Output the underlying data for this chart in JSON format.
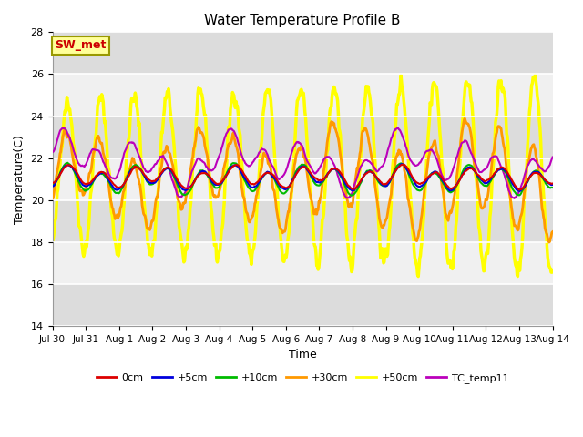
{
  "title": "Water Temperature Profile B",
  "xlabel": "Time",
  "ylabel": "Temperature(C)",
  "ylim": [
    14,
    28
  ],
  "yticks": [
    14,
    16,
    18,
    20,
    22,
    24,
    26,
    28
  ],
  "annotation": "SW_met",
  "annotation_color": "#CC0000",
  "annotation_bg": "#FFFF99",
  "annotation_border": "#999900",
  "series": {
    "0cm": {
      "color": "#DD0000",
      "lw": 1.5
    },
    "+5cm": {
      "color": "#0000DD",
      "lw": 1.5
    },
    "+10cm": {
      "color": "#00BB00",
      "lw": 1.5
    },
    "+30cm": {
      "color": "#FF9900",
      "lw": 2.0
    },
    "+50cm": {
      "color": "#FFFF00",
      "lw": 2.5
    },
    "TC_temp11": {
      "color": "#BB00BB",
      "lw": 1.5
    }
  },
  "tick_labels": [
    "Jul 30",
    "Jul 31",
    "Aug 1",
    "Aug 2",
    "Aug 3",
    "Aug 4",
    "Aug 5",
    "Aug 6",
    "Aug 7",
    "Aug 8",
    "Aug 9",
    "Aug 10",
    "Aug 11",
    "Aug 12",
    "Aug 13",
    "Aug 14"
  ],
  "band_colors": [
    "#DCDCDC",
    "#F0F0F0"
  ],
  "seed": 42
}
